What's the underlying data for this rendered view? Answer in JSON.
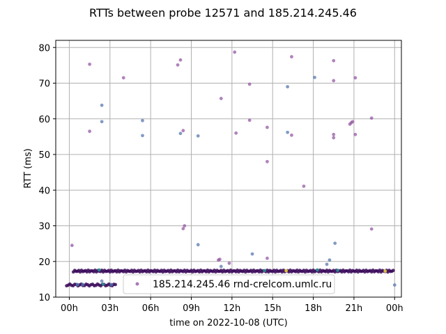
{
  "chart_data": {
    "type": "scatter",
    "title": "RTTs between probe 12571 and 185.214.245.46",
    "xlabel": "time on 2022-10-08 (UTC)",
    "ylabel": "RTT (ms)",
    "x_unit": "hours UTC",
    "xlim": [
      -1,
      24.5
    ],
    "ylim": [
      10,
      82
    ],
    "grid": true,
    "x_ticks": [
      {
        "value": 0,
        "label": "00h"
      },
      {
        "value": 3,
        "label": "03h"
      },
      {
        "value": 6,
        "label": "06h"
      },
      {
        "value": 9,
        "label": "09h"
      },
      {
        "value": 12,
        "label": "12h"
      },
      {
        "value": 15,
        "label": "15h"
      },
      {
        "value": 18,
        "label": "18h"
      },
      {
        "value": 21,
        "label": "21h"
      },
      {
        "value": 24,
        "label": "00h"
      }
    ],
    "y_ticks": [
      10,
      20,
      30,
      40,
      50,
      60,
      70,
      80
    ],
    "legend": {
      "placement": "lower-center",
      "label": "185.214.245.46 rnd-crelcom.umlc.ru"
    },
    "colors": {
      "purple": "#8e4f9e",
      "blue": "#4f6fa8",
      "dark": "#3b0b5a",
      "teal": "#2b8c8c",
      "yellow": "#e8d43a"
    },
    "series": [
      {
        "points": [
          {
            "x": 0.2,
            "y": 24.5,
            "c": "purple"
          },
          {
            "x": 1.5,
            "y": 75.3,
            "c": "purple"
          },
          {
            "x": 1.5,
            "y": 56.5,
            "c": "purple"
          },
          {
            "x": 2.4,
            "y": 63.8,
            "c": "blue"
          },
          {
            "x": 2.4,
            "y": 59.2,
            "c": "blue"
          },
          {
            "x": 2.4,
            "y": 14.5,
            "c": "blue"
          },
          {
            "x": 4.0,
            "y": 71.5,
            "c": "purple"
          },
          {
            "x": 5.4,
            "y": 59.5,
            "c": "blue"
          },
          {
            "x": 5.4,
            "y": 55.3,
            "c": "blue"
          },
          {
            "x": 8.0,
            "y": 75.1,
            "c": "purple"
          },
          {
            "x": 8.2,
            "y": 76.5,
            "c": "purple"
          },
          {
            "x": 8.2,
            "y": 55.9,
            "c": "blue"
          },
          {
            "x": 8.4,
            "y": 56.7,
            "c": "purple"
          },
          {
            "x": 8.4,
            "y": 29.2,
            "c": "purple"
          },
          {
            "x": 8.5,
            "y": 30.0,
            "c": "purple"
          },
          {
            "x": 9.5,
            "y": 55.2,
            "c": "blue"
          },
          {
            "x": 9.5,
            "y": 24.7,
            "c": "blue"
          },
          {
            "x": 11.0,
            "y": 20.4,
            "c": "purple"
          },
          {
            "x": 11.1,
            "y": 20.6,
            "c": "purple"
          },
          {
            "x": 11.2,
            "y": 65.7,
            "c": "purple"
          },
          {
            "x": 11.2,
            "y": 18.6,
            "c": "blue"
          },
          {
            "x": 11.8,
            "y": 19.5,
            "c": "purple"
          },
          {
            "x": 12.2,
            "y": 78.7,
            "c": "purple"
          },
          {
            "x": 12.3,
            "y": 56.0,
            "c": "purple"
          },
          {
            "x": 13.3,
            "y": 69.7,
            "c": "purple"
          },
          {
            "x": 13.3,
            "y": 59.6,
            "c": "purple"
          },
          {
            "x": 13.5,
            "y": 22.1,
            "c": "blue"
          },
          {
            "x": 14.6,
            "y": 57.6,
            "c": "purple"
          },
          {
            "x": 14.6,
            "y": 48.0,
            "c": "purple"
          },
          {
            "x": 14.6,
            "y": 20.9,
            "c": "purple"
          },
          {
            "x": 16.1,
            "y": 69.0,
            "c": "blue"
          },
          {
            "x": 16.1,
            "y": 56.2,
            "c": "blue"
          },
          {
            "x": 16.4,
            "y": 77.4,
            "c": "purple"
          },
          {
            "x": 16.4,
            "y": 55.4,
            "c": "purple"
          },
          {
            "x": 17.3,
            "y": 41.1,
            "c": "purple"
          },
          {
            "x": 18.1,
            "y": 71.6,
            "c": "blue"
          },
          {
            "x": 19.0,
            "y": 19.2,
            "c": "blue"
          },
          {
            "x": 19.2,
            "y": 20.4,
            "c": "blue"
          },
          {
            "x": 19.5,
            "y": 76.3,
            "c": "purple"
          },
          {
            "x": 19.5,
            "y": 70.7,
            "c": "purple"
          },
          {
            "x": 19.5,
            "y": 55.6,
            "c": "purple"
          },
          {
            "x": 19.5,
            "y": 54.7,
            "c": "purple"
          },
          {
            "x": 19.6,
            "y": 25.1,
            "c": "blue"
          },
          {
            "x": 20.7,
            "y": 58.5,
            "c": "purple"
          },
          {
            "x": 20.8,
            "y": 58.9,
            "c": "purple"
          },
          {
            "x": 20.9,
            "y": 59.2,
            "c": "purple"
          },
          {
            "x": 21.1,
            "y": 71.5,
            "c": "purple"
          },
          {
            "x": 21.1,
            "y": 55.6,
            "c": "purple"
          },
          {
            "x": 22.3,
            "y": 60.2,
            "c": "purple"
          },
          {
            "x": 22.3,
            "y": 29.1,
            "c": "purple"
          },
          {
            "x": 24.0,
            "y": 13.4,
            "c": "blue"
          }
        ],
        "band_high": {
          "y": 17.3,
          "x_start": 0.3,
          "x_end": 23.9,
          "step": 0.1,
          "c": "dark"
        },
        "band_low": {
          "y": 13.4,
          "x_start": -0.2,
          "x_end": 3.5,
          "step": 0.12,
          "c": "dark"
        },
        "highlight_points": [
          {
            "x": 2.2,
            "y": 17.6,
            "c": "teal"
          },
          {
            "x": 2.5,
            "y": 13.6,
            "c": "teal"
          },
          {
            "x": 1.0,
            "y": 13.5,
            "c": "blue"
          },
          {
            "x": 3.1,
            "y": 13.5,
            "c": "blue"
          },
          {
            "x": 0.6,
            "y": 13.5,
            "c": "blue"
          },
          {
            "x": 16.0,
            "y": 17.4,
            "c": "yellow"
          },
          {
            "x": 23.3,
            "y": 17.3,
            "c": "yellow"
          },
          {
            "x": 18.3,
            "y": 17.6,
            "c": "teal"
          },
          {
            "x": 19.8,
            "y": 17.5,
            "c": "teal"
          },
          {
            "x": 14.4,
            "y": 17.4,
            "c": "teal"
          }
        ]
      }
    ]
  }
}
